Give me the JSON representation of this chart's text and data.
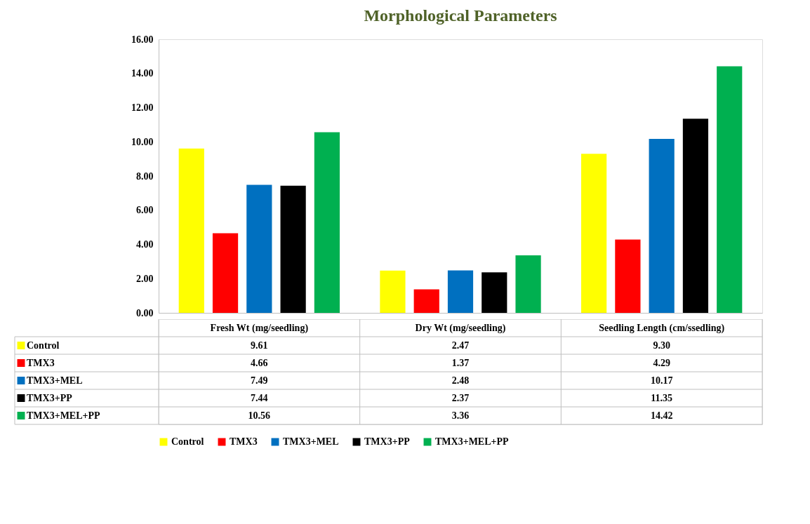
{
  "chart_data": {
    "type": "bar",
    "title": "Morphological Parameters",
    "categories": [
      "Fresh Wt (mg/seedling)",
      "Dry Wt (mg/seedling)",
      "Seedling Length (cm/ssedling)"
    ],
    "series": [
      {
        "name": "Control",
        "color": "#ffff00",
        "values": [
          9.61,
          2.47,
          9.3
        ],
        "value_labels": [
          "9.61",
          "2.47",
          "9.30"
        ]
      },
      {
        "name": "TMX3",
        "color": "#ff0000",
        "values": [
          4.66,
          1.37,
          4.29
        ],
        "value_labels": [
          "4.66",
          "1.37",
          "4.29"
        ]
      },
      {
        "name": "TMX3+MEL",
        "color": "#0070c0",
        "values": [
          7.49,
          2.48,
          10.17
        ],
        "value_labels": [
          "7.49",
          "2.48",
          "10.17"
        ]
      },
      {
        "name": "TMX3+PP",
        "color": "#000000",
        "values": [
          7.44,
          2.37,
          11.35
        ],
        "value_labels": [
          "7.44",
          "2.37",
          "11.35"
        ]
      },
      {
        "name": "TMX3+MEL+PP",
        "color": "#00b050",
        "values": [
          10.56,
          3.36,
          14.42
        ],
        "value_labels": [
          "10.56",
          "3.36",
          "14.42"
        ]
      }
    ],
    "ylim": [
      0,
      16
    ],
    "yticks": [
      {
        "value": 0,
        "label": "0.00"
      },
      {
        "value": 2,
        "label": "2.00"
      },
      {
        "value": 4,
        "label": "4.00"
      },
      {
        "value": 6,
        "label": "6.00"
      },
      {
        "value": 8,
        "label": "8.00"
      },
      {
        "value": 10,
        "label": "10.00"
      },
      {
        "value": 12,
        "label": "12.00"
      },
      {
        "value": 14,
        "label": "14.00"
      },
      {
        "value": 16,
        "label": "16.00"
      }
    ],
    "grid": false,
    "legend": "bottom"
  }
}
